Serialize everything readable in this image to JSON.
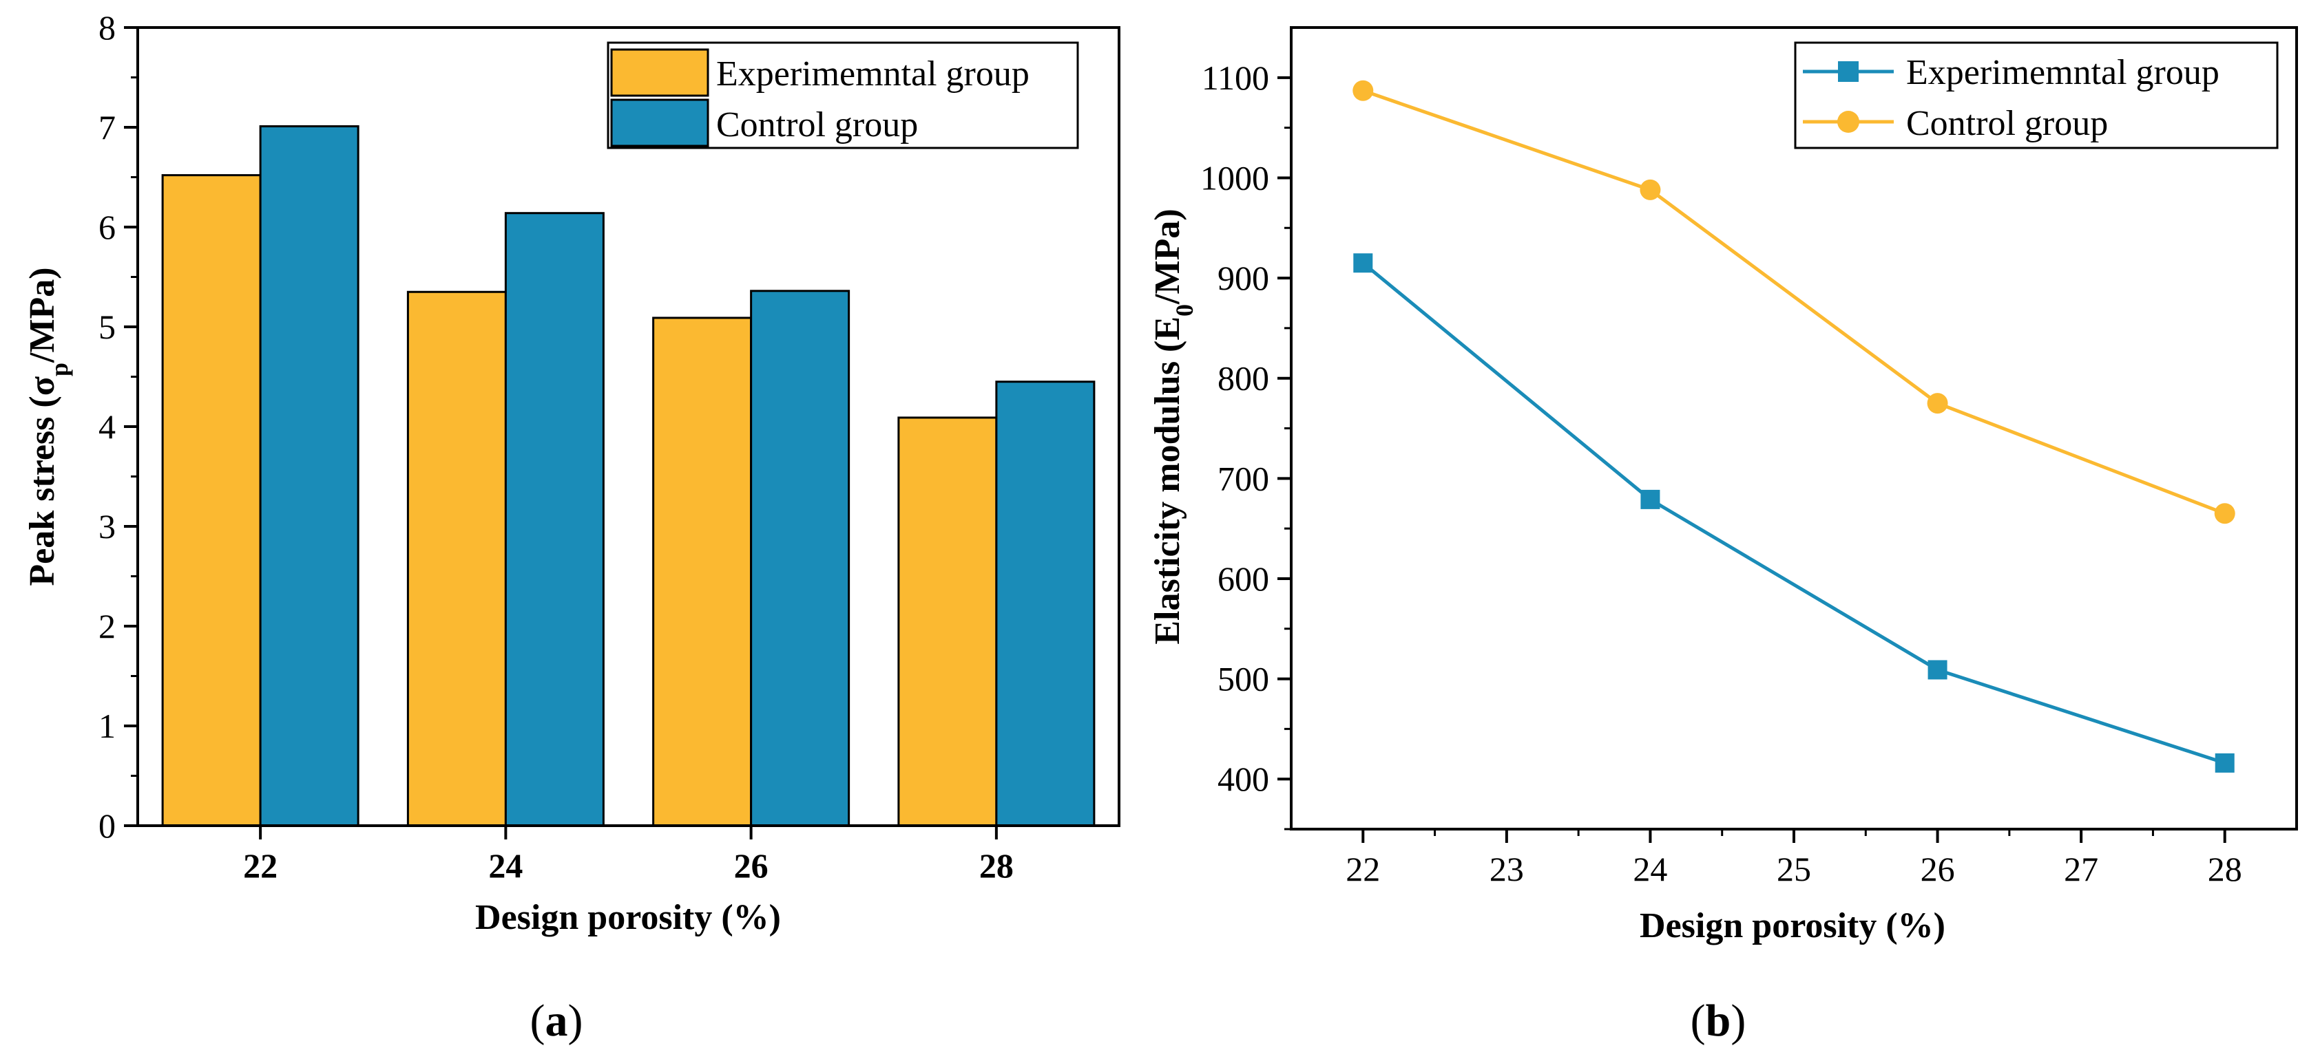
{
  "chart_data": [
    {
      "id": "a",
      "type": "bar",
      "panel_label": "a",
      "categories": [
        "22",
        "24",
        "26",
        "28"
      ],
      "series": [
        {
          "name": "Experimemntal group",
          "color": "#FBB931",
          "values": [
            6.52,
            5.35,
            5.09,
            4.09
          ]
        },
        {
          "name": "Control group",
          "color": "#1A8CB8",
          "values": [
            7.01,
            6.14,
            5.36,
            4.45
          ]
        }
      ],
      "xlabel": "Design porosity (%)",
      "ylabel": {
        "main": "Peak stress (σ",
        "sub": "p",
        "tail": "/MPa)"
      },
      "ylim": [
        0,
        8
      ],
      "yticks": [
        "0",
        "1",
        "2",
        "3",
        "4",
        "5",
        "6",
        "7",
        "8"
      ],
      "legend_position": "top-right",
      "grid": false
    },
    {
      "id": "b",
      "type": "line",
      "panel_label": "b",
      "x": [
        22,
        24,
        26,
        28
      ],
      "series": [
        {
          "name": "Experimemntal group",
          "color": "#1A8CB8",
          "marker": "square",
          "values": [
            915,
            679,
            509,
            416
          ]
        },
        {
          "name": "Control group",
          "color": "#FBB931",
          "marker": "circle",
          "values": [
            1087,
            988,
            775,
            665
          ]
        }
      ],
      "xlabel": "Design porosity (%)",
      "ylabel": {
        "main": "Elasticity modulus (E",
        "sub": "0",
        "tail": "/MPa)"
      },
      "xlim": [
        21.5,
        28.5
      ],
      "xticks": [
        "22",
        "23",
        "24",
        "25",
        "26",
        "27",
        "28"
      ],
      "ylim": [
        350,
        1150
      ],
      "yticks": [
        "400",
        "500",
        "600",
        "700",
        "800",
        "900",
        "1000",
        "1100"
      ],
      "legend_position": "top-right",
      "grid": false
    }
  ]
}
